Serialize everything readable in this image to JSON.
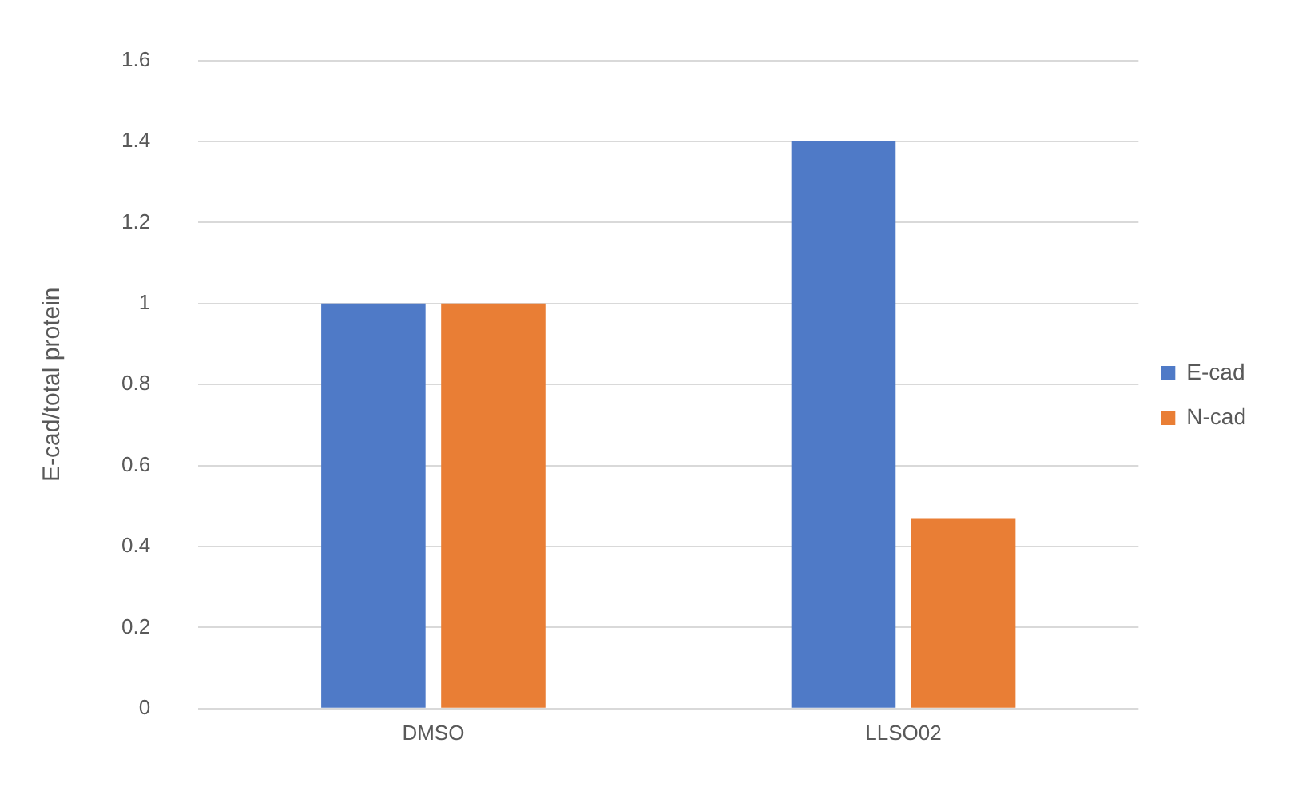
{
  "chart_data": {
    "type": "bar",
    "ylabel": "E-cad/total protein",
    "categories": [
      "DMSO",
      "LLSO02"
    ],
    "series": [
      {
        "name": "E-cad",
        "color": "#4f7ac7",
        "values": [
          1,
          1.4
        ]
      },
      {
        "name": "N-cad",
        "color": "#e97e35",
        "values": [
          1,
          0.47
        ]
      }
    ],
    "ylim": [
      0,
      1.6
    ],
    "yticks": [
      0,
      0.2,
      0.4,
      0.6,
      0.8,
      1,
      1.2,
      1.4,
      1.6
    ],
    "grid": "y",
    "legend": "right"
  }
}
